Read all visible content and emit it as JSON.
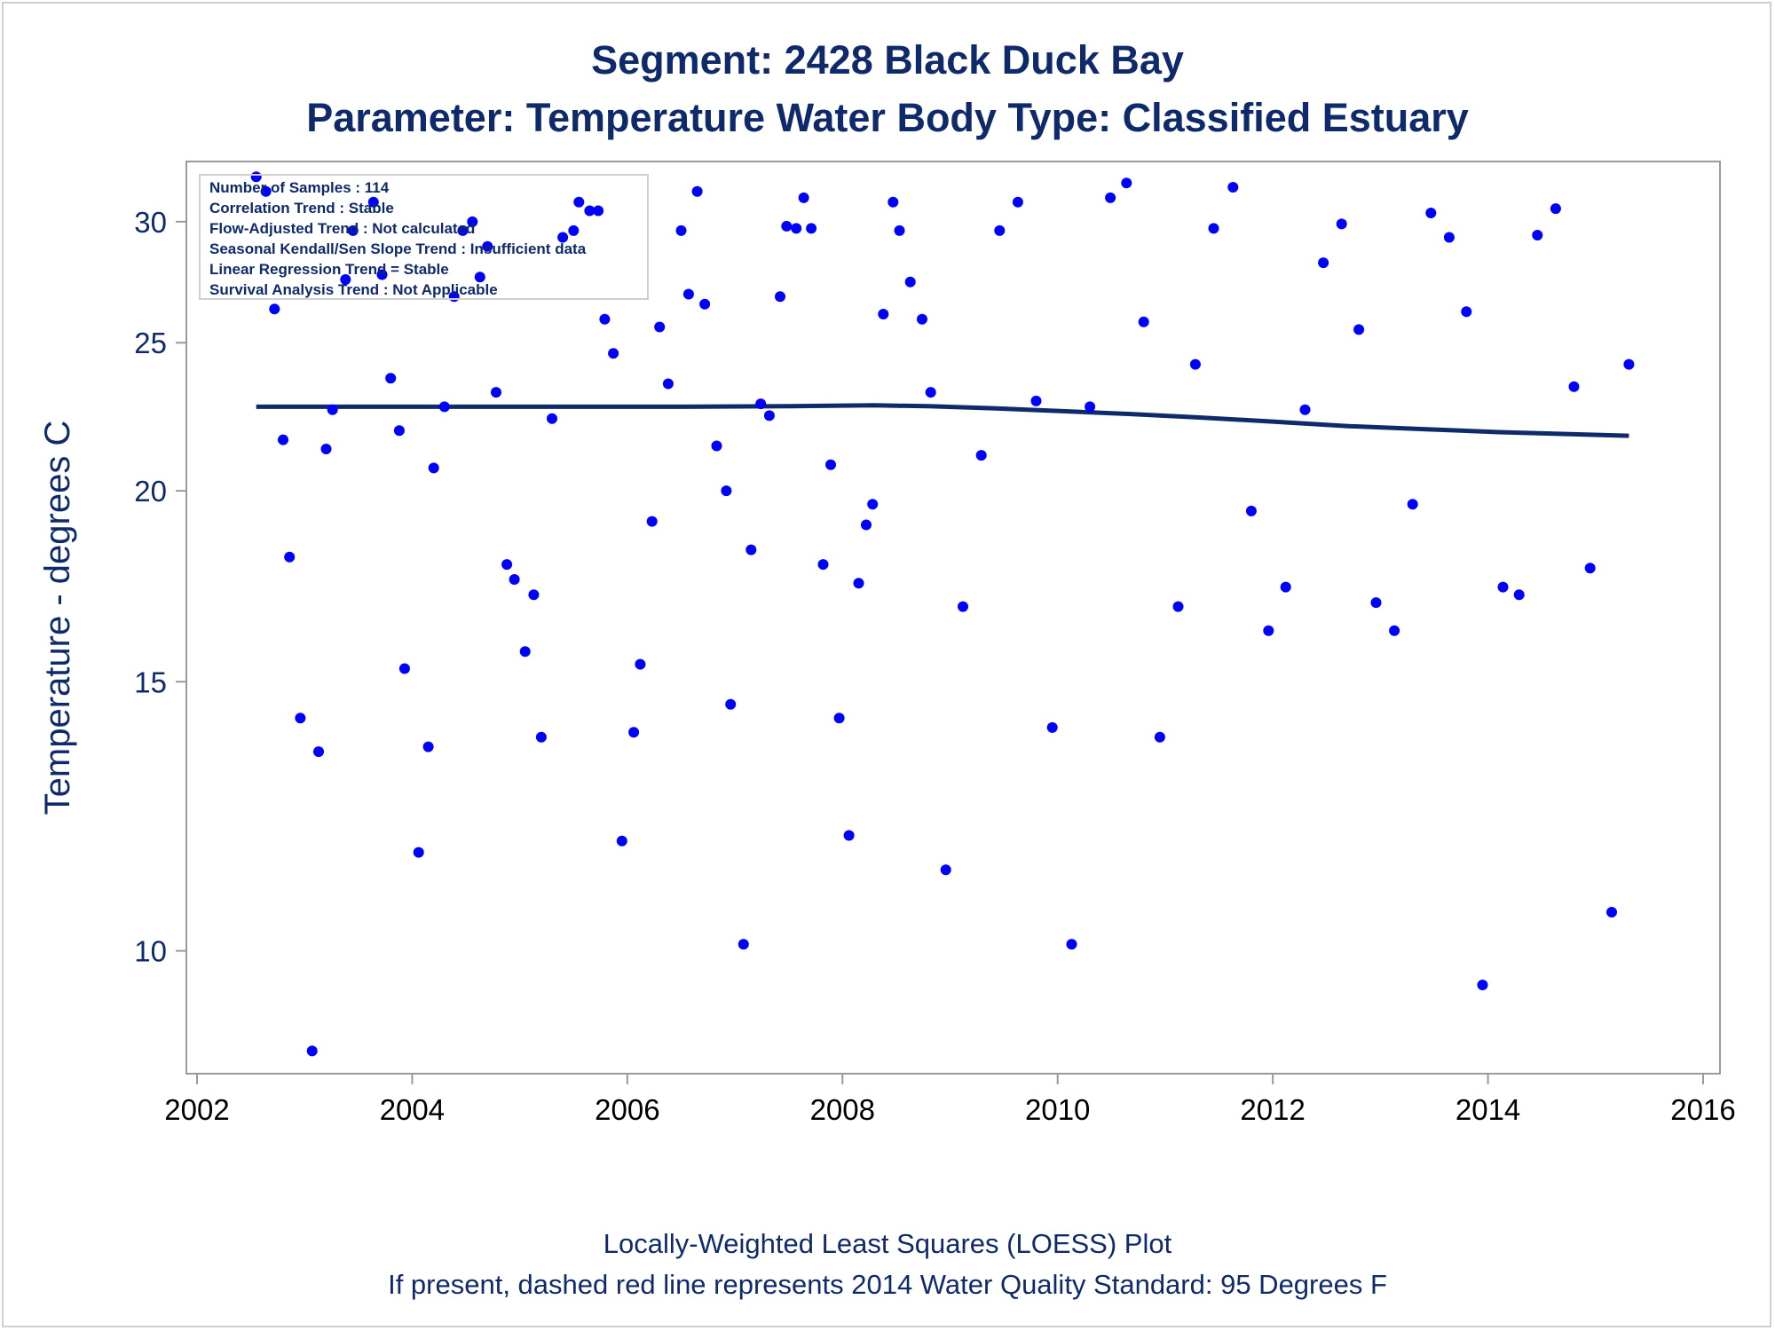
{
  "chart_data": {
    "type": "scatter",
    "title": "Segment: 2428  Black Duck Bay",
    "subtitle": "Parameter: Temperature   Water Body Type: Classified Estuary",
    "ylabel": "Temperature - degrees C",
    "y_scale": "log",
    "xlim": [
      2002,
      2016
    ],
    "ylim": [
      8.4,
      32.5
    ],
    "x_ticks": [
      "2002",
      "2004",
      "2006",
      "2008",
      "2010",
      "2012",
      "2014",
      "2016"
    ],
    "y_ticks": [
      "10",
      "15",
      "20",
      "25",
      "30"
    ],
    "footnotes": [
      "Locally-Weighted Least Squares (LOESS) Plot",
      "If present, dashed red line represents 2014 Water Quality Standard: 95   Degrees F"
    ],
    "inset_lines": [
      "Number of Samples : 114",
      "Correlation Trend : Stable",
      "Flow-Adjusted Trend : Not calculated",
      "Seasonal Kendall/Sen Slope Trend : Insufficient data",
      "Linear Regression Trend = Stable",
      "Survival Analysis Trend : Not Applicable"
    ],
    "colors": {
      "points": "#0000ff",
      "loess": "#0f2a6b",
      "text": "#0f2a6b"
    },
    "series": [
      {
        "kind": "points",
        "points": [
          [
            2002.55,
            32.1
          ],
          [
            2002.64,
            31.4
          ],
          [
            2002.72,
            26.3
          ],
          [
            2002.8,
            21.6
          ],
          [
            2002.86,
            18.1
          ],
          [
            2002.96,
            14.2
          ],
          [
            2003.07,
            8.6
          ],
          [
            2003.13,
            13.5
          ],
          [
            2003.2,
            21.3
          ],
          [
            2003.26,
            22.6
          ],
          [
            2003.45,
            29.6
          ],
          [
            2003.38,
            27.5
          ],
          [
            2003.64,
            30.9
          ],
          [
            2003.72,
            27.7
          ],
          [
            2003.8,
            23.7
          ],
          [
            2003.88,
            21.9
          ],
          [
            2003.93,
            15.3
          ],
          [
            2004.06,
            11.6
          ],
          [
            2004.15,
            13.6
          ],
          [
            2004.2,
            20.7
          ],
          [
            2004.3,
            22.7
          ],
          [
            2004.39,
            26.8
          ],
          [
            2004.47,
            29.6
          ],
          [
            2004.56,
            30.0
          ],
          [
            2004.63,
            27.6
          ],
          [
            2004.7,
            28.9
          ],
          [
            2004.78,
            23.2
          ],
          [
            2004.88,
            17.9
          ],
          [
            2004.95,
            17.5
          ],
          [
            2005.05,
            15.7
          ],
          [
            2005.13,
            17.1
          ],
          [
            2005.2,
            13.8
          ],
          [
            2005.3,
            22.3
          ],
          [
            2005.4,
            29.3
          ],
          [
            2005.55,
            30.9
          ],
          [
            2005.65,
            30.5
          ],
          [
            2005.73,
            30.5
          ],
          [
            2005.79,
            25.9
          ],
          [
            2005.87,
            24.6
          ],
          [
            2005.95,
            11.8
          ],
          [
            2006.06,
            13.9
          ],
          [
            2006.12,
            15.4
          ],
          [
            2006.23,
            19.1
          ],
          [
            2006.3,
            25.6
          ],
          [
            2006.38,
            23.5
          ],
          [
            2006.5,
            29.6
          ],
          [
            2006.57,
            26.9
          ],
          [
            2006.65,
            31.4
          ],
          [
            2006.72,
            26.5
          ],
          [
            2006.83,
            21.4
          ],
          [
            2006.92,
            20.0
          ],
          [
            2006.96,
            14.5
          ],
          [
            2007.08,
            10.1
          ],
          [
            2007.15,
            18.3
          ],
          [
            2007.24,
            22.8
          ],
          [
            2007.32,
            22.4
          ],
          [
            2007.42,
            26.8
          ],
          [
            2007.48,
            29.8
          ],
          [
            2007.57,
            29.7
          ],
          [
            2007.64,
            31.1
          ],
          [
            2007.71,
            29.7
          ],
          [
            2007.82,
            17.9
          ],
          [
            2007.89,
            20.8
          ],
          [
            2007.97,
            14.2
          ],
          [
            2008.06,
            11.9
          ],
          [
            2008.15,
            17.4
          ],
          [
            2008.22,
            19.0
          ],
          [
            2008.28,
            19.6
          ],
          [
            2008.38,
            26.1
          ],
          [
            2008.47,
            30.9
          ],
          [
            2008.53,
            29.6
          ],
          [
            2008.63,
            27.4
          ],
          [
            2008.74,
            25.9
          ],
          [
            2008.82,
            23.2
          ],
          [
            2008.96,
            11.3
          ],
          [
            2009.12,
            16.8
          ],
          [
            2009.29,
            21.1
          ],
          [
            2009.46,
            29.6
          ],
          [
            2009.63,
            30.9
          ],
          [
            2009.8,
            22.9
          ],
          [
            2009.95,
            14.0
          ],
          [
            2010.13,
            10.1
          ],
          [
            2010.3,
            22.7
          ],
          [
            2010.49,
            31.1
          ],
          [
            2010.64,
            31.8
          ],
          [
            2010.8,
            25.8
          ],
          [
            2010.95,
            13.8
          ],
          [
            2011.12,
            16.8
          ],
          [
            2011.28,
            24.2
          ],
          [
            2011.45,
            29.7
          ],
          [
            2011.63,
            31.6
          ],
          [
            2011.8,
            19.4
          ],
          [
            2011.96,
            16.2
          ],
          [
            2012.12,
            17.3
          ],
          [
            2012.3,
            22.6
          ],
          [
            2012.47,
            28.2
          ],
          [
            2012.64,
            29.9
          ],
          [
            2012.8,
            25.5
          ],
          [
            2012.96,
            16.9
          ],
          [
            2013.13,
            16.2
          ],
          [
            2013.3,
            19.6
          ],
          [
            2013.47,
            30.4
          ],
          [
            2013.64,
            29.3
          ],
          [
            2013.8,
            26.2
          ],
          [
            2013.95,
            9.5
          ],
          [
            2014.14,
            17.3
          ],
          [
            2014.29,
            17.1
          ],
          [
            2014.46,
            29.4
          ],
          [
            2014.63,
            30.6
          ],
          [
            2014.8,
            23.4
          ],
          [
            2014.95,
            17.8
          ],
          [
            2015.15,
            10.6
          ],
          [
            2015.31,
            24.2
          ],
          [
            2005.5,
            29.6
          ]
        ]
      },
      {
        "kind": "loess",
        "points": [
          [
            2002.55,
            22.7
          ],
          [
            2004.0,
            22.7
          ],
          [
            2005.5,
            22.7
          ],
          [
            2006.5,
            22.7
          ],
          [
            2007.5,
            22.72
          ],
          [
            2008.3,
            22.75
          ],
          [
            2008.8,
            22.72
          ],
          [
            2009.4,
            22.65
          ],
          [
            2010.0,
            22.56
          ],
          [
            2010.7,
            22.45
          ],
          [
            2011.3,
            22.34
          ],
          [
            2012.0,
            22.2
          ],
          [
            2012.7,
            22.05
          ],
          [
            2013.4,
            21.95
          ],
          [
            2014.1,
            21.85
          ],
          [
            2014.8,
            21.78
          ],
          [
            2015.31,
            21.73
          ]
        ]
      }
    ]
  }
}
